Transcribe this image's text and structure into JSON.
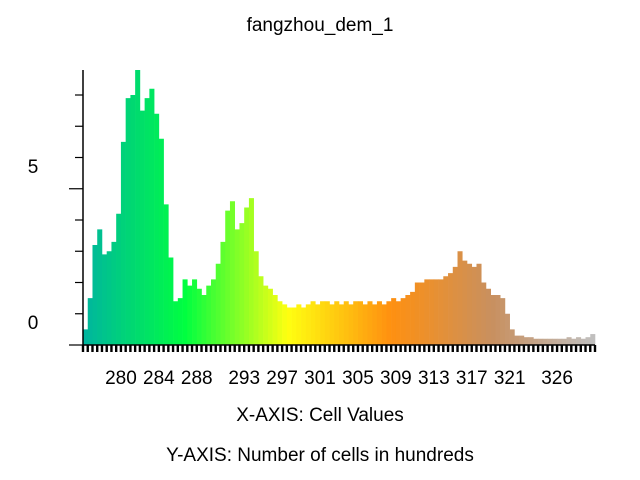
{
  "chart_data": {
    "type": "histogram",
    "title": "fangzhou_dem_1",
    "xlabel": "X-AXIS: Cell Values",
    "ylabel": "Y-AXIS: Number of cells in hundreds",
    "bins": [
      276,
      276.5,
      277,
      277.5,
      278,
      278.5,
      279,
      279.5,
      280,
      280.5,
      281,
      281.5,
      282,
      282.5,
      283,
      283.5,
      284,
      284.5,
      285,
      285.5,
      286,
      286.5,
      287,
      287.5,
      288,
      288.5,
      289,
      289.5,
      290,
      290.5,
      291,
      291.5,
      292,
      292.5,
      293,
      293.5,
      294,
      294.5,
      295,
      295.5,
      296,
      296.5,
      297,
      297.5,
      298,
      298.5,
      299,
      299.5,
      300,
      300.5,
      301,
      301.5,
      302,
      302.5,
      303,
      303.5,
      304,
      304.5,
      305,
      305.5,
      306,
      306.5,
      307,
      307.5,
      308,
      308.5,
      309,
      309.5,
      310,
      310.5,
      311,
      311.5,
      312,
      312.5,
      313,
      313.5,
      314,
      314.5,
      315,
      315.5,
      316,
      316.5,
      317,
      317.5,
      318,
      318.5,
      319,
      319.5,
      320,
      320.5,
      321,
      321.5,
      322,
      322.5,
      323,
      323.5,
      324,
      324.5,
      325,
      325.5,
      326,
      326.5,
      327,
      327.5,
      328,
      328.5,
      329,
      329.5,
      330
    ],
    "values": [
      0.5,
      1.5,
      3.2,
      3.7,
      2.9,
      3.0,
      3.3,
      4.2,
      6.5,
      7.9,
      8.0,
      8.8,
      7.5,
      7.9,
      8.2,
      7.4,
      6.6,
      4.5,
      2.8,
      1.4,
      1.5,
      2.1,
      1.9,
      2.1,
      1.8,
      1.6,
      1.9,
      2.1,
      2.6,
      3.3,
      4.3,
      4.6,
      3.7,
      3.9,
      4.4,
      4.7,
      3.0,
      2.2,
      1.9,
      1.8,
      1.6,
      1.4,
      1.3,
      1.2,
      1.2,
      1.3,
      1.2,
      1.3,
      1.4,
      1.3,
      1.4,
      1.4,
      1.3,
      1.4,
      1.3,
      1.4,
      1.3,
      1.4,
      1.4,
      1.3,
      1.4,
      1.3,
      1.4,
      1.3,
      1.4,
      1.5,
      1.4,
      1.5,
      1.6,
      1.7,
      2.0,
      2.0,
      2.1,
      2.1,
      2.1,
      2.1,
      2.2,
      2.3,
      2.5,
      3.0,
      2.7,
      2.6,
      2.5,
      2.6,
      2.0,
      1.8,
      1.6,
      1.6,
      1.5,
      1.0,
      0.5,
      0.3,
      0.3,
      0.25,
      0.25,
      0.2,
      0.2,
      0.2,
      0.2,
      0.2,
      0.2,
      0.2,
      0.25,
      0.2,
      0.25,
      0.2,
      0.25,
      0.35
    ],
    "color_stops": [
      "#00b4a0",
      "#00ff40",
      "#ffff10",
      "#ff9010",
      "#c89060",
      "#c0c0c0"
    ],
    "xlim": [
      276,
      330
    ],
    "xticks": [
      280,
      284,
      288,
      293,
      297,
      301,
      305,
      309,
      313,
      317,
      321,
      326
    ],
    "ylim": [
      0,
      8.8
    ],
    "yticks": [
      0,
      5
    ],
    "yminor_ticks": [
      1,
      2,
      3,
      4,
      6,
      7,
      8
    ]
  }
}
